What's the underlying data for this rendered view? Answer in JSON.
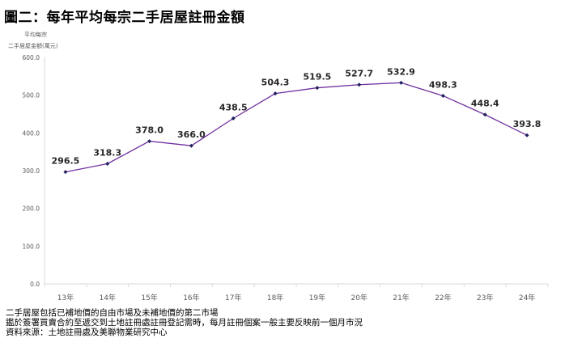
{
  "title": "圖二：每年平均每宗二手居屋註冊金額",
  "chart_data": {
    "type": "line",
    "title": "圖二：每年平均每宗二手居屋註冊金額",
    "ylabel_line1": "平均每宗",
    "ylabel_line2": "二手居屋金額(萬元)",
    "categories": [
      "13年",
      "14年",
      "15年",
      "16年",
      "17年",
      "18年",
      "19年",
      "20年",
      "21年",
      "22年",
      "23年",
      "24年"
    ],
    "values": [
      296.5,
      318.3,
      378.0,
      366.0,
      438.5,
      504.3,
      519.5,
      527.7,
      532.9,
      498.3,
      448.4,
      393.8
    ],
    "ylim": [
      0,
      600
    ],
    "yticks": [
      "0.0",
      "100.0",
      "200.0",
      "300.0",
      "400.0",
      "500.0",
      "600.0"
    ],
    "grid": false,
    "line_color": "#7030A0",
    "marker_color": "#1F1F5F"
  },
  "notes": [
    "二手居屋包括已補地價的自由市場及未補地價的第二市場",
    "鑑於簽署買賣合約至遞交到土地註冊處註冊登記需時，每月註冊個案一般主要反映前一個月市況",
    "資料來源：土地註冊處及美聯物業研究中心"
  ]
}
